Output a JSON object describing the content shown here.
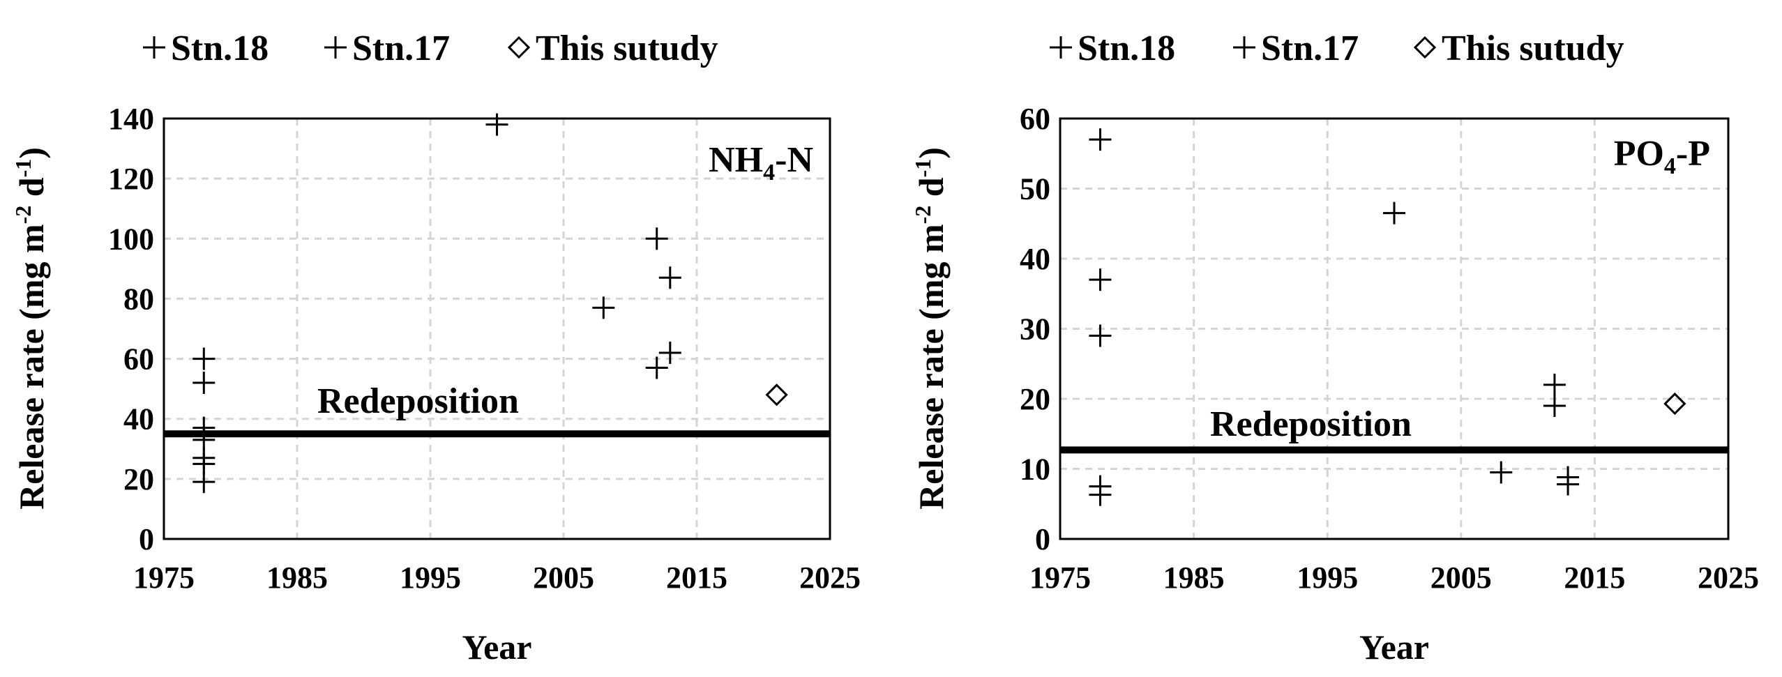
{
  "chart_data": [
    {
      "type": "scatter",
      "panel_label_main": "NH",
      "panel_label_sub": "4",
      "panel_label_rest": "-N",
      "xlabel": "Year",
      "ylabel_main": "Release rate (mg m",
      "ylabel_sup1": "-2",
      "ylabel_mid": " d",
      "ylabel_sup2": "-1",
      "ylabel_end": ")",
      "xlim": [
        1975,
        2025
      ],
      "ylim": [
        0,
        140
      ],
      "xticks": [
        "1975",
        "1985",
        "1995",
        "2005",
        "2015",
        "2025"
      ],
      "yticks": [
        "0",
        "20",
        "40",
        "60",
        "80",
        "100",
        "120",
        "140"
      ],
      "grid": true,
      "legend_position": "top",
      "legend": [
        "Stn.18",
        "Stn.17",
        "This sutudy"
      ],
      "reference_line": {
        "label": "Redeposition",
        "y": 35
      },
      "series": [
        {
          "name": "Stn.18",
          "marker": "plus",
          "points": [
            [
              1978,
              60
            ],
            [
              1978,
              52
            ],
            [
              1978,
              37
            ],
            [
              1978,
              33
            ],
            [
              1978,
              27
            ],
            [
              1978,
              25
            ],
            [
              1978,
              19
            ],
            [
              2000,
              138
            ],
            [
              2008,
              77
            ],
            [
              2012,
              100
            ],
            [
              2012,
              57
            ]
          ]
        },
        {
          "name": "Stn.17",
          "marker": "plus",
          "points": [
            [
              2013,
              87
            ],
            [
              2013,
              62
            ]
          ]
        },
        {
          "name": "This sutudy",
          "marker": "diamond",
          "points": [
            [
              2021,
              48
            ]
          ]
        }
      ]
    },
    {
      "type": "scatter",
      "panel_label_main": "PO",
      "panel_label_sub": "4",
      "panel_label_rest": "-P",
      "xlabel": "Year",
      "ylabel_main": "Release rate (mg m",
      "ylabel_sup1": "-2",
      "ylabel_mid": " d",
      "ylabel_sup2": "-1",
      "ylabel_end": ")",
      "xlim": [
        1975,
        2025
      ],
      "ylim": [
        0,
        60
      ],
      "xticks": [
        "1975",
        "1985",
        "1995",
        "2005",
        "2015",
        "2025"
      ],
      "yticks": [
        "0",
        "10",
        "20",
        "30",
        "40",
        "50",
        "60"
      ],
      "grid": true,
      "legend_position": "top",
      "legend": [
        "Stn.18",
        "Stn.17",
        "This sutudy"
      ],
      "reference_line": {
        "label": "Redeposition",
        "y": 12.7
      },
      "series": [
        {
          "name": "Stn.18",
          "marker": "plus",
          "points": [
            [
              1978,
              57
            ],
            [
              1978,
              37
            ],
            [
              1978,
              29
            ],
            [
              1978,
              7.5
            ],
            [
              1978,
              6.3
            ],
            [
              2000,
              46.5
            ],
            [
              2008,
              9.5
            ],
            [
              2012,
              22
            ],
            [
              2012,
              19
            ]
          ]
        },
        {
          "name": "Stn.17",
          "marker": "plus",
          "points": [
            [
              2013,
              8.8
            ],
            [
              2013,
              7.8
            ]
          ]
        },
        {
          "name": "This sutudy",
          "marker": "diamond",
          "points": [
            [
              2021,
              19.3
            ]
          ]
        }
      ]
    }
  ]
}
